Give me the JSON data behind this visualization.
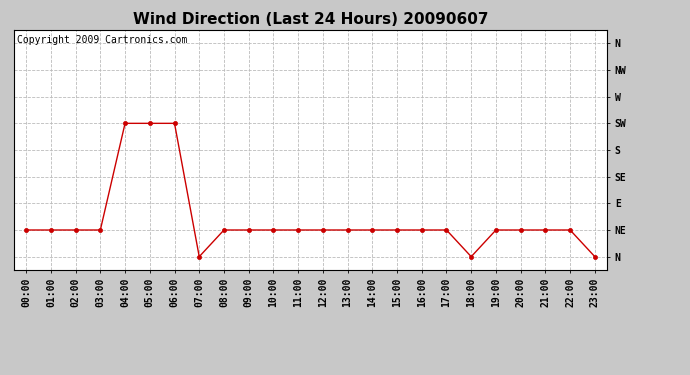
{
  "title": "Wind Direction (Last 24 Hours) 20090607",
  "copyright_text": "Copyright 2009 Cartronics.com",
  "background_color": "#c8c8c8",
  "plot_bg_color": "#ffffff",
  "line_color": "#cc0000",
  "marker": "o",
  "marker_size": 3,
  "marker_color": "#cc0000",
  "grid_color": "#bbbbbb",
  "grid_style": "--",
  "hours": [
    0,
    1,
    2,
    3,
    4,
    5,
    6,
    7,
    8,
    9,
    10,
    11,
    12,
    13,
    14,
    15,
    16,
    17,
    18,
    19,
    20,
    21,
    22,
    23
  ],
  "values": [
    1,
    1,
    1,
    1,
    5,
    5,
    5,
    0,
    1,
    1,
    1,
    1,
    1,
    1,
    1,
    1,
    1,
    1,
    0,
    1,
    1,
    1,
    1,
    0
  ],
  "ytick_labels": [
    "N",
    "NE",
    "E",
    "SE",
    "S",
    "SW",
    "W",
    "NW",
    "N"
  ],
  "ytick_values": [
    0,
    1,
    2,
    3,
    4,
    5,
    6,
    7,
    8
  ],
  "ylim": [
    -0.5,
    8.5
  ],
  "xlim": [
    -0.5,
    23.5
  ],
  "xtick_labels": [
    "00:00",
    "01:00",
    "02:00",
    "03:00",
    "04:00",
    "05:00",
    "06:00",
    "07:00",
    "08:00",
    "09:00",
    "10:00",
    "11:00",
    "12:00",
    "13:00",
    "14:00",
    "15:00",
    "16:00",
    "17:00",
    "18:00",
    "19:00",
    "20:00",
    "21:00",
    "22:00",
    "23:00"
  ],
  "title_fontsize": 11,
  "tick_fontsize": 7,
  "copyright_fontsize": 7
}
